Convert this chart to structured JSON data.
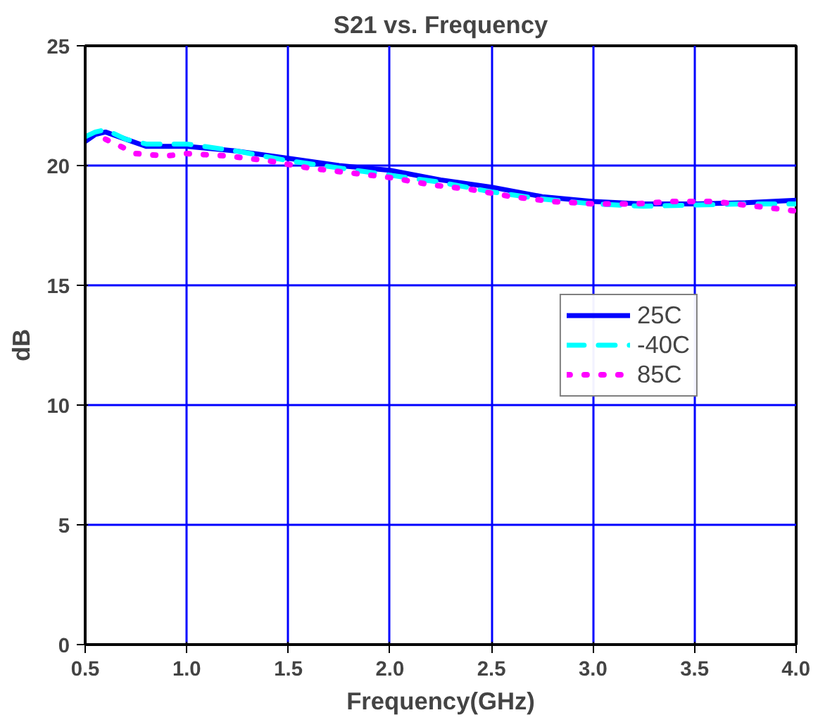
{
  "chart_data": {
    "type": "line",
    "title": "S21 vs. Frequency",
    "xlabel": "Frequency(GHz)",
    "ylabel": "dB",
    "xlim": [
      0.5,
      4.0
    ],
    "ylim": [
      0,
      25
    ],
    "xticks": [
      {
        "value": 0.5,
        "label": "0.5"
      },
      {
        "value": 1.0,
        "label": "1.0"
      },
      {
        "value": 1.5,
        "label": "1.5"
      },
      {
        "value": 2.0,
        "label": "2.0"
      },
      {
        "value": 2.5,
        "label": "2.5"
      },
      {
        "value": 3.0,
        "label": "3.0"
      },
      {
        "value": 3.5,
        "label": "3.5"
      },
      {
        "value": 4.0,
        "label": "4.0"
      }
    ],
    "yticks": [
      0,
      5,
      10,
      15,
      20,
      25
    ],
    "grid": true,
    "legend": "right",
    "series": [
      {
        "name": "25C",
        "color": "#0000ff",
        "line_style": "solid",
        "x": [
          0.5,
          0.55,
          0.6,
          0.7,
          0.8,
          1.0,
          1.25,
          1.5,
          1.75,
          2.0,
          2.25,
          2.5,
          2.75,
          3.0,
          3.25,
          3.5,
          3.75,
          4.0
        ],
        "values": [
          21.0,
          21.3,
          21.4,
          21.1,
          20.8,
          20.8,
          20.6,
          20.3,
          20.0,
          19.8,
          19.4,
          19.1,
          18.7,
          18.5,
          18.4,
          18.4,
          18.45,
          18.55
        ]
      },
      {
        "name": "-40C",
        "color": "#00ffff",
        "line_style": "dashed",
        "x": [
          0.5,
          0.55,
          0.6,
          0.7,
          0.8,
          1.0,
          1.25,
          1.5,
          1.75,
          2.0,
          2.25,
          2.5,
          2.75,
          3.0,
          3.25,
          3.5,
          3.75,
          4.0
        ],
        "values": [
          21.2,
          21.4,
          21.5,
          21.1,
          20.9,
          20.9,
          20.6,
          20.2,
          19.9,
          19.6,
          19.3,
          18.9,
          18.6,
          18.4,
          18.3,
          18.35,
          18.4,
          18.4
        ]
      },
      {
        "name": "85C",
        "color": "#ff00ff",
        "line_style": "dotted",
        "x": [
          0.6,
          0.75,
          0.9,
          1.0,
          1.2,
          1.4,
          1.6,
          1.8,
          2.0,
          2.2,
          2.4,
          2.6,
          2.8,
          3.0,
          3.2,
          3.4,
          3.6,
          3.8,
          4.0
        ],
        "values": [
          21.1,
          20.5,
          20.4,
          20.5,
          20.4,
          20.2,
          19.9,
          19.7,
          19.5,
          19.2,
          19.0,
          18.7,
          18.5,
          18.4,
          18.4,
          18.5,
          18.5,
          18.3,
          18.1
        ]
      }
    ]
  }
}
